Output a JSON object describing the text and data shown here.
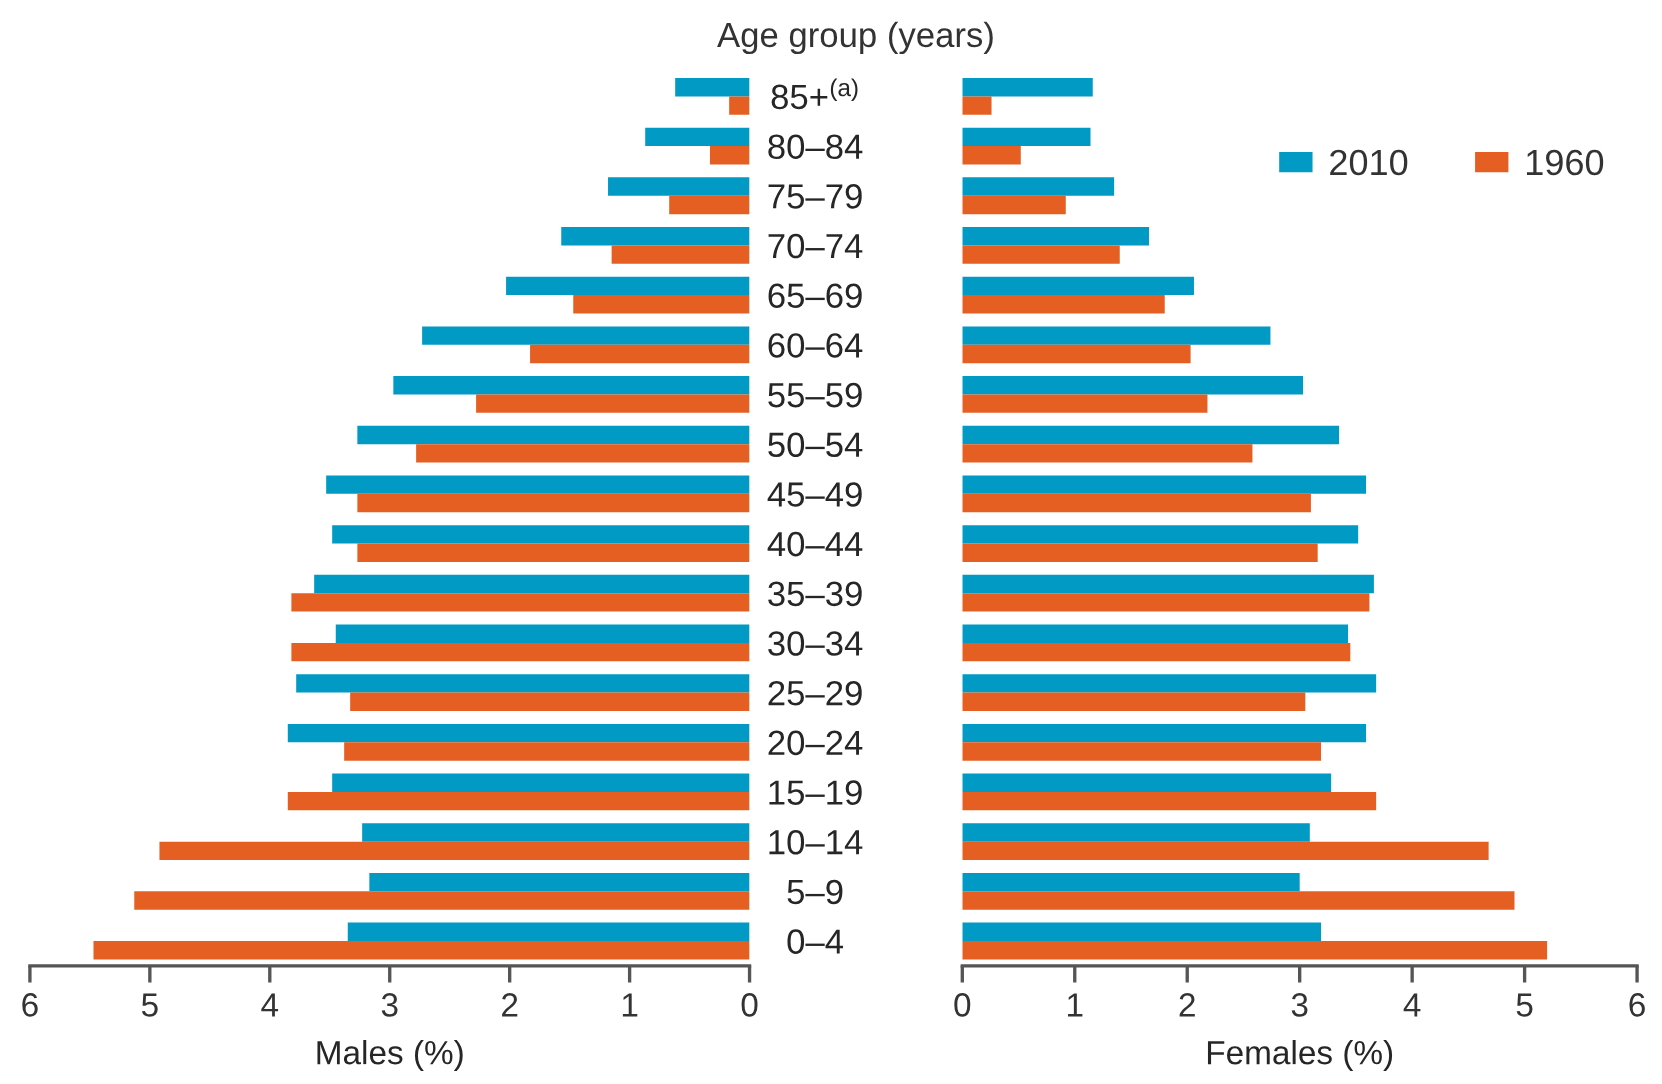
{
  "chart_data": [
    {
      "type": "bar",
      "orientation": "horizontal",
      "title": "Age group (years)",
      "xlabel": "Males (%)",
      "tick_labels": "x",
      "legend": false,
      "grid": false,
      "categories": [
        null,
        null,
        null,
        null,
        null,
        null,
        null,
        null,
        null,
        null,
        null,
        null,
        null,
        null,
        null,
        null,
        null,
        null
      ],
      "xlim": [
        6,
        0
      ],
      "xticks": [
        6,
        5,
        4,
        3,
        2,
        1,
        0
      ],
      "series": [
        {
          "color": "#009ac4",
          "values": [
            0.62,
            0.87,
            1.18,
            1.57,
            2.03,
            2.73,
            2.97,
            3.27,
            3.53,
            3.48,
            3.63,
            3.45,
            3.78,
            3.85,
            3.48,
            3.23,
            3.17,
            3.35
          ]
        },
        {
          "color": "#e55f22",
          "values": [
            0.17,
            0.33,
            0.67,
            1.15,
            1.47,
            1.83,
            2.28,
            2.78,
            3.27,
            3.27,
            3.82,
            3.82,
            3.33,
            3.38,
            3.85,
            4.92,
            5.13,
            5.47
          ]
        }
      ]
    },
    {
      "type": "bar",
      "orientation": "horizontal",
      "xlabel": "Females (%)",
      "legend": "top right",
      "grid": false,
      "categories": [
        "85+$^{(a)}$",
        "80–84",
        "75–79",
        "70–74",
        "65–69",
        "60–64",
        "55–59",
        "50–54",
        "45–49",
        "40–44",
        "35–39",
        "30–34",
        "25–29",
        "20–24",
        "15–19",
        "10–14",
        "5–9",
        "0–4"
      ],
      "xlim": [
        0,
        6
      ],
      "xticks": [
        0,
        1,
        2,
        3,
        4,
        5,
        6
      ],
      "series": [
        {
          "name": "2010",
          "color": "#009ac4",
          "values": [
            1.16,
            1.14,
            1.35,
            1.66,
            2.06,
            2.74,
            3.03,
            3.35,
            3.59,
            3.52,
            3.66,
            3.43,
            3.68,
            3.59,
            3.28,
            3.09,
            3.0,
            3.19
          ]
        },
        {
          "name": "1960",
          "color": "#e55f22",
          "values": [
            0.26,
            0.52,
            0.92,
            1.4,
            1.8,
            2.03,
            2.18,
            2.58,
            3.1,
            3.16,
            3.62,
            3.45,
            3.05,
            3.19,
            3.68,
            4.68,
            4.91,
            5.2
          ]
        }
      ]
    }
  ]
}
